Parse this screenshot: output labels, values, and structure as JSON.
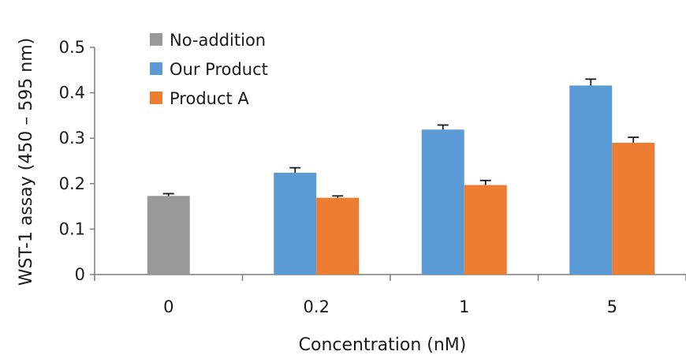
{
  "chart_data": {
    "type": "bar",
    "title": "",
    "xlabel": "Concentration (nM)",
    "ylabel": "WST-1 assay (450 – 595 nm)",
    "categories": [
      "0",
      "0.2",
      "1",
      "5"
    ],
    "ylim": [
      0,
      0.5
    ],
    "yticks": [
      "0",
      "0.1",
      "0.2",
      "0.3",
      "0.4",
      "0.5"
    ],
    "grid": false,
    "legend_position": "top-left",
    "series": [
      {
        "name": "No-addition",
        "color": "#999999",
        "values": [
          0.173,
          null,
          null,
          null
        ],
        "errors": [
          0.005,
          null,
          null,
          null
        ]
      },
      {
        "name": "Our Product",
        "color": "#5b9bd5",
        "values": [
          null,
          0.224,
          0.319,
          0.416
        ],
        "errors": [
          null,
          0.011,
          0.01,
          0.014
        ]
      },
      {
        "name": "Product A",
        "color": "#ed7d31",
        "values": [
          null,
          0.169,
          0.197,
          0.29
        ],
        "errors": [
          null,
          0.004,
          0.01,
          0.012
        ]
      }
    ]
  }
}
